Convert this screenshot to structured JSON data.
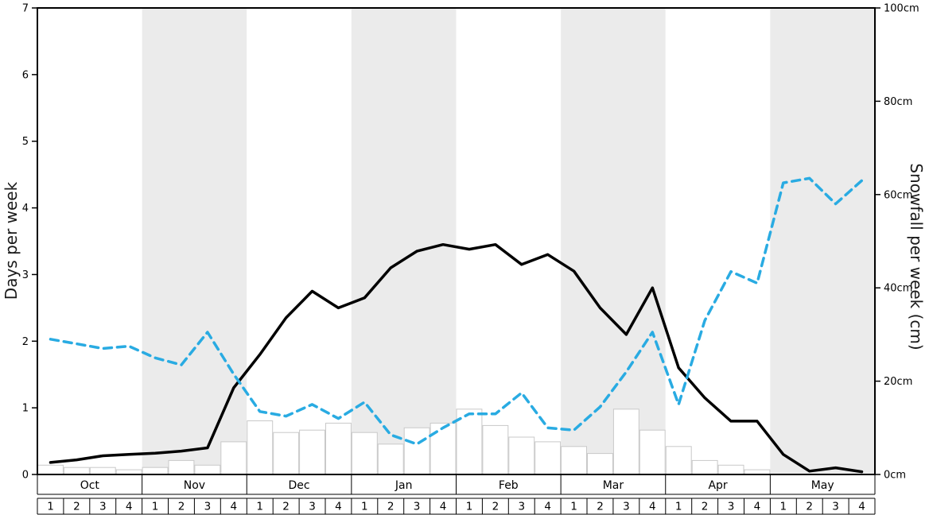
{
  "chart_data": {
    "type": "line",
    "title": "",
    "months": [
      "Oct",
      "Nov",
      "Dec",
      "Jan",
      "Feb",
      "Mar",
      "Apr",
      "May"
    ],
    "week_labels": [
      "1",
      "2",
      "3",
      "4"
    ],
    "left_axis": {
      "label": "Days per week",
      "min": 0,
      "max": 7,
      "ticks": [
        "0",
        "1",
        "2",
        "3",
        "4",
        "5",
        "6",
        "7"
      ]
    },
    "right_axis": {
      "label": "Snowfall per week (cm)",
      "min": 0,
      "max": 100,
      "ticks": [
        "0cm",
        "20cm",
        "40cm",
        "60cm",
        "80cm",
        "100cm"
      ],
      "tick_values": [
        0,
        20,
        40,
        60,
        80,
        100
      ]
    },
    "band_colors": {
      "even": "#ffffff",
      "odd": "#ebebeb"
    },
    "grid": false,
    "legend": "none",
    "series": [
      {
        "name": "days-per-week-line",
        "axis": "left",
        "type": "line",
        "line_style": "solid",
        "color": "#000000",
        "values": [
          0.18,
          0.22,
          0.28,
          0.3,
          0.32,
          0.35,
          0.4,
          1.3,
          1.8,
          2.35,
          2.75,
          2.5,
          2.65,
          3.1,
          3.35,
          3.45,
          3.38,
          3.45,
          3.15,
          3.3,
          3.05,
          2.5,
          2.1,
          2.8,
          1.6,
          1.15,
          0.8,
          0.8,
          0.3,
          0.05,
          0.1,
          0.04
        ]
      },
      {
        "name": "avg-snowfall-line",
        "axis": "right",
        "type": "line",
        "line_style": "dashed",
        "color": "#29abe2",
        "values": [
          29,
          28,
          27,
          27.5,
          25,
          23.5,
          30.5,
          21.5,
          13.5,
          12.5,
          15,
          12,
          15.5,
          8.5,
          6.5,
          10,
          13,
          13,
          17.5,
          10,
          9.5,
          14.5,
          22,
          30.5,
          15,
          33,
          43.5,
          41,
          62.5,
          63.5,
          58,
          63
        ]
      },
      {
        "name": "snowfall-bars",
        "axis": "right",
        "type": "bar",
        "color": "#ffffff",
        "border": "#c9c9c9",
        "values": [
          2,
          1.5,
          1.5,
          1,
          1.5,
          3,
          2,
          7,
          11.5,
          9,
          9.5,
          11,
          9,
          6.5,
          10,
          11,
          14,
          10.5,
          8,
          7,
          6,
          4.5,
          14,
          9.5,
          6,
          3,
          2,
          1,
          0,
          0,
          0,
          0
        ]
      }
    ]
  }
}
